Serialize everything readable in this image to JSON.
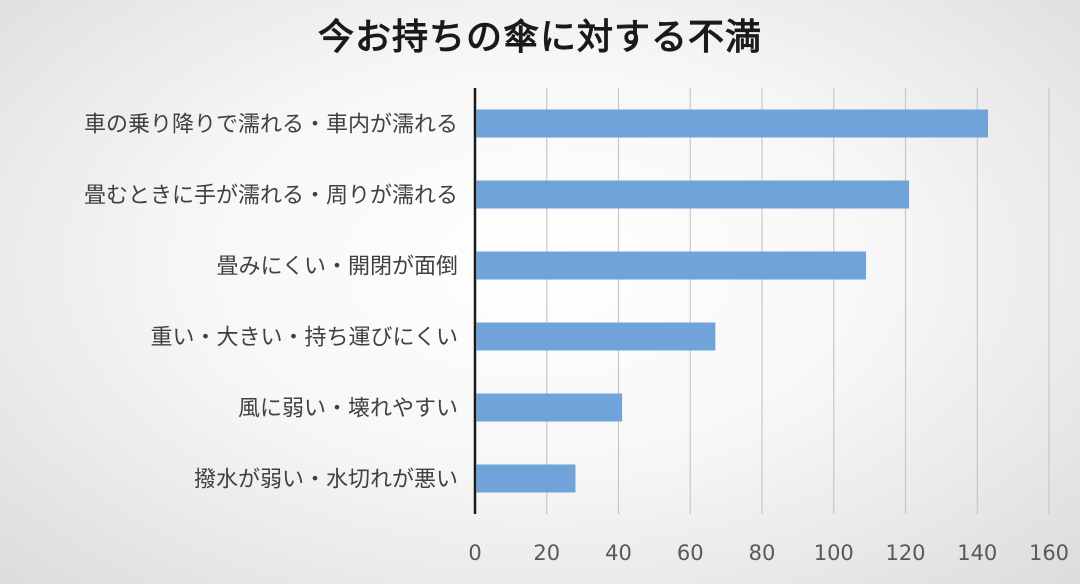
{
  "chart_data": {
    "type": "bar",
    "orientation": "horizontal",
    "title": "今お持ちの傘に対する不満",
    "categories": [
      "車の乗り降りで濡れる・車内が濡れる",
      "畳むときに手が濡れる・周りが濡れる",
      "畳みにくい・開閉が面倒",
      "重い・大きい・持ち運びにくい",
      "風に弱い・壊れやすい",
      "撥水が弱い・水切れが悪い"
    ],
    "values": [
      143,
      121,
      109,
      67,
      41,
      28
    ],
    "xlim": [
      0,
      160
    ],
    "xticks": [
      "0",
      "20",
      "40",
      "60",
      "80",
      "100",
      "120",
      "140",
      "160"
    ],
    "grid": "vertical",
    "bar_color": "#6fa3d9",
    "xlabel": "",
    "ylabel": ""
  }
}
